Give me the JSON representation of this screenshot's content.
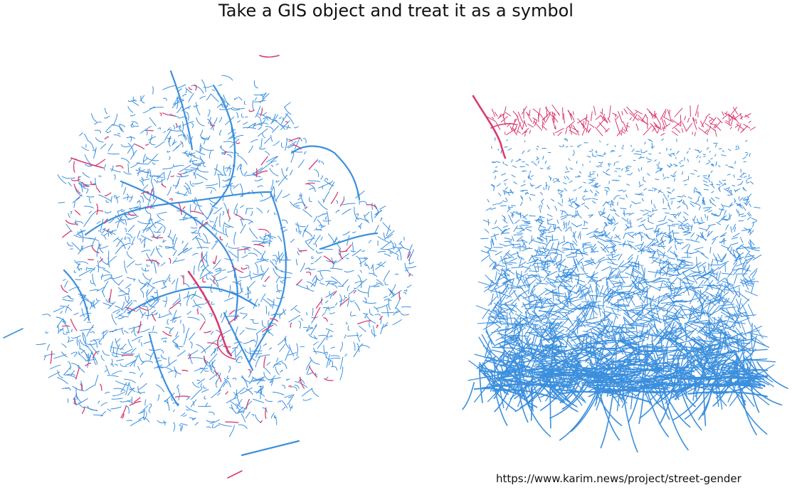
{
  "title": "Take a GIS object and treat it as a symbol",
  "source_link": "https://www.karim.news/project/street-gender",
  "colors": {
    "male_streets": "#3b8fdd",
    "female_streets": "#d93a6f",
    "background": "#ffffff",
    "text": "#111111"
  },
  "panels": [
    {
      "label": "",
      "kind": "street-map"
    },
    {
      "label": "",
      "kind": "stacked-street-segments"
    }
  ]
}
